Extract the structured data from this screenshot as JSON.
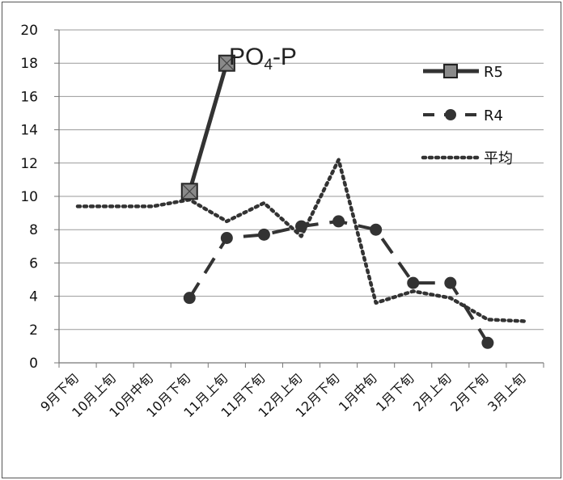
{
  "chart_data": {
    "type": "line",
    "title": "PO4-P",
    "title_main": "PO",
    "title_sub": "4",
    "title_tail": "-P",
    "ylim": [
      0,
      20
    ],
    "ystep": 2,
    "yticks": [
      "0",
      "2",
      "4",
      "6",
      "8",
      "10",
      "12",
      "14",
      "16",
      "18",
      "20"
    ],
    "grid": "horizontal",
    "legend_position": "right",
    "categories": [
      "9月下旬",
      "10月上旬",
      "10月中旬",
      "10月下旬",
      "11月上旬",
      "11月下旬",
      "12月上旬",
      "12月下旬",
      "1月中旬",
      "1月下旬",
      "2月上旬",
      "2月下旬",
      "3月上旬"
    ],
    "series": [
      {
        "name": "R5",
        "style": "solid-square",
        "color": "#333333",
        "values": [
          null,
          null,
          null,
          10.3,
          18.0,
          null,
          null,
          null,
          null,
          null,
          null,
          null,
          null
        ]
      },
      {
        "name": "R4",
        "style": "dash-circle",
        "color": "#333333",
        "values": [
          null,
          null,
          null,
          3.9,
          7.5,
          7.7,
          8.2,
          8.5,
          8.0,
          4.8,
          4.8,
          1.2,
          null
        ]
      },
      {
        "name": "平均",
        "style": "dotted",
        "color": "#333333",
        "values": [
          9.4,
          9.4,
          9.4,
          9.8,
          8.5,
          9.6,
          7.6,
          12.2,
          3.6,
          4.3,
          3.9,
          2.6,
          2.5
        ]
      }
    ]
  }
}
